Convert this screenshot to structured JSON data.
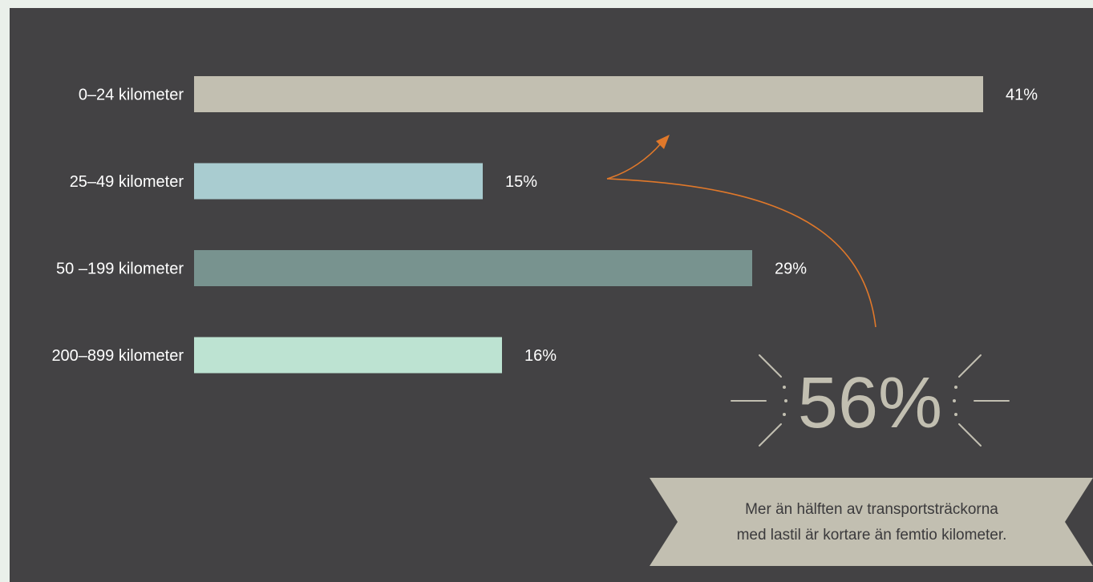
{
  "chart_data": {
    "type": "bar",
    "orientation": "horizontal",
    "categories": [
      "0–24 kilometer",
      "25–49 kilometer",
      "50 –199 kilometer",
      "200–899 kilometer"
    ],
    "values": [
      41,
      15,
      29,
      16
    ],
    "value_labels": [
      "41%",
      "15%",
      "29%",
      "16%"
    ],
    "bar_colors": [
      "#c2bfb1",
      "#a9ccd0",
      "#78938f",
      "#bde3d2"
    ],
    "xlim": [
      0,
      41
    ],
    "grid": false,
    "legend": "none"
  },
  "callout": {
    "big_number": "56%",
    "text_line1": "Mer än hälften av transportsträckorna",
    "text_line2": "med lastil är kortare än femtio kilometer."
  },
  "colors": {
    "background": "#434244",
    "page": "#eaf0ea",
    "label_text": "#ffffff",
    "accent_arrow": "#e0782a",
    "callout_fill": "#c2bfb1",
    "big_number": "#c2bfb1",
    "callout_text": "#3b3a3c"
  }
}
